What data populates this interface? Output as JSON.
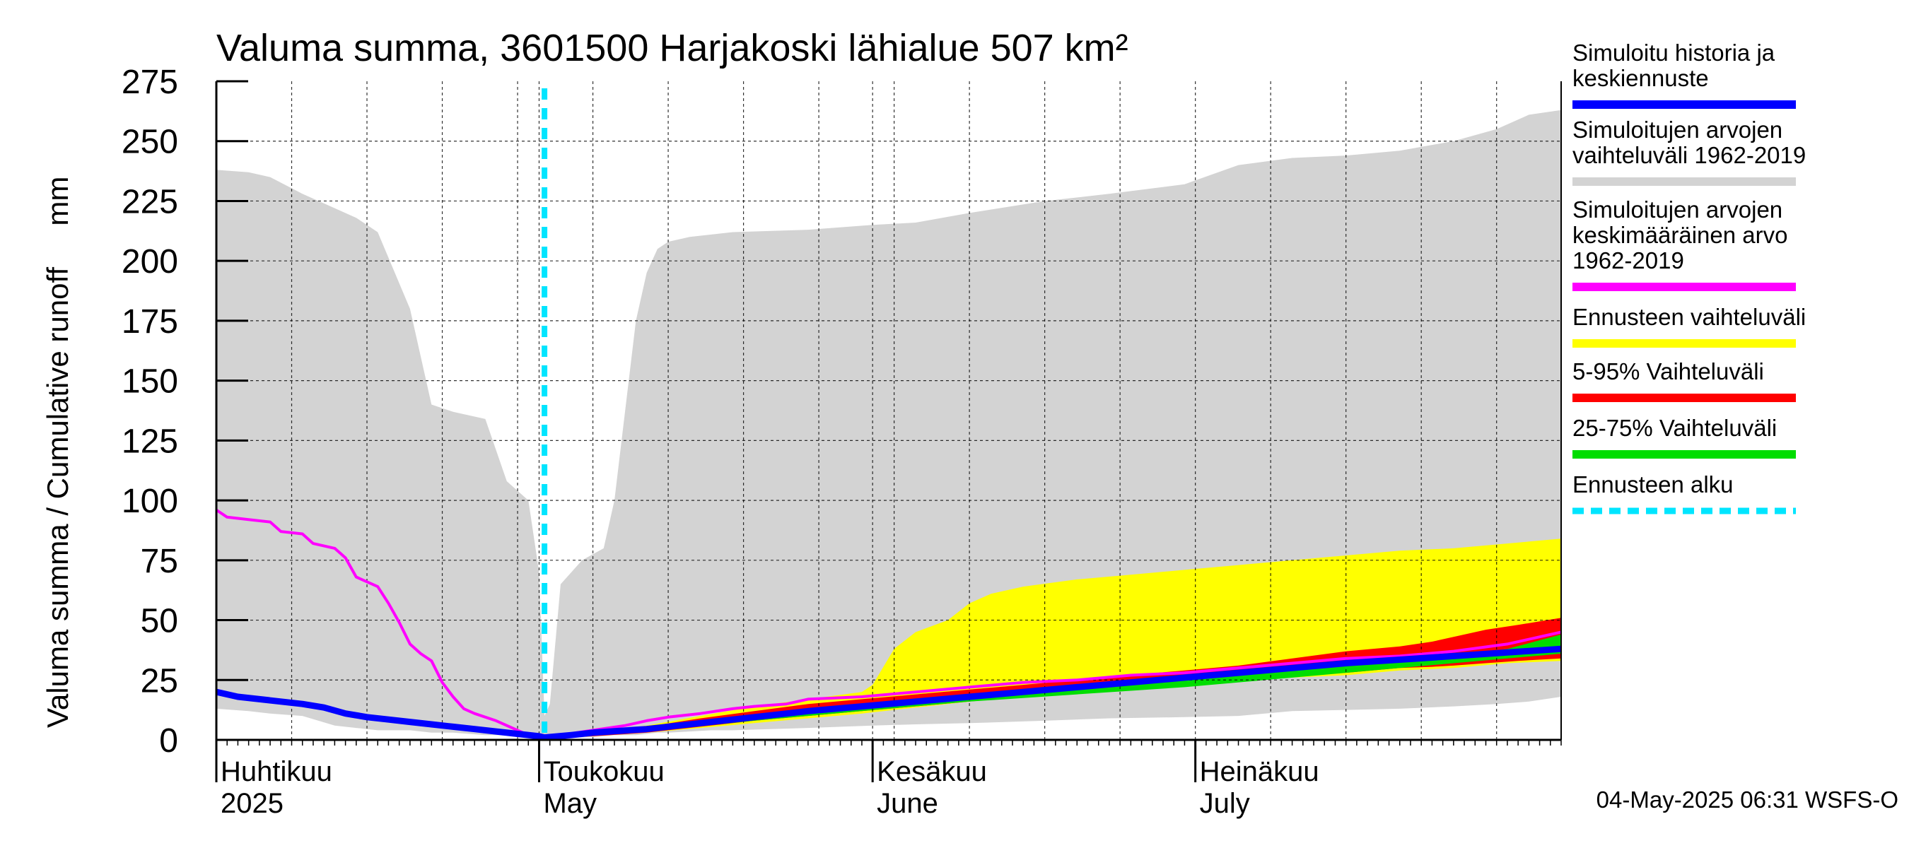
{
  "chart_data": {
    "type": "area",
    "title": "Valuma summa, 3601500 Harjakoski lähialue 507 km²",
    "ylabel": "Valuma summa / Cumulative runoff     mm",
    "ylim": [
      0,
      275
    ],
    "yticks": [
      "0",
      "25",
      "50",
      "75",
      "100",
      "125",
      "150",
      "175",
      "200",
      "225",
      "250",
      "275"
    ],
    "xlim_day": [
      0,
      125
    ],
    "x_axis_note": "day index, 0 = 1 April 2025",
    "grid": true,
    "months": [
      {
        "label1": "Huhtikuu",
        "label2": "2025",
        "day": 0
      },
      {
        "label1": "Toukokuu",
        "label2": "May",
        "day": 30
      },
      {
        "label1": "Kesäkuu",
        "label2": "June",
        "day": 61
      },
      {
        "label1": "Heinäkuu",
        "label2": "July",
        "day": 91
      }
    ],
    "forecast_start_day": 30.5,
    "series": [
      {
        "name": "Simuloitujen arvojen vaihteluväli 1962-2019",
        "kind": "band",
        "color": "#d3d3d3",
        "x": [
          0,
          3,
          5,
          8,
          11,
          13,
          15,
          18,
          20,
          22,
          25,
          27,
          29,
          30,
          30.5,
          31,
          32,
          34,
          36,
          37,
          39,
          40,
          41,
          42,
          44,
          46,
          48,
          55,
          61,
          65,
          70,
          77,
          83,
          90,
          95,
          100,
          105,
          110,
          115,
          119,
          122,
          125
        ],
        "upper": [
          238,
          237,
          235,
          228,
          222,
          218,
          212,
          180,
          140,
          137,
          134,
          108,
          100,
          70,
          10,
          15,
          65,
          75,
          80,
          100,
          175,
          195,
          205,
          208,
          210,
          211,
          212,
          213,
          215,
          216,
          220,
          225,
          228,
          232,
          240,
          243,
          244,
          246,
          250,
          255,
          261,
          263
        ],
        "lower": [
          13,
          12,
          11,
          10,
          6,
          5,
          4,
          4,
          3,
          3,
          2,
          2,
          1.5,
          1,
          0.5,
          0.5,
          1,
          1,
          1.5,
          2,
          2,
          2.5,
          3,
          3,
          3.5,
          4,
          4,
          5,
          6,
          6.5,
          7,
          8,
          9,
          9.5,
          10,
          12,
          12.5,
          13,
          14,
          15,
          16,
          18
        ]
      },
      {
        "name": "Ennusteen vaihteluväli",
        "kind": "band",
        "color": "#ffff00",
        "x": [
          30.5,
          35,
          40,
          45,
          50,
          55,
          60,
          61,
          63,
          65,
          68,
          70,
          72,
          75,
          80,
          85,
          90,
          95,
          100,
          105,
          110,
          115,
          120,
          125
        ],
        "upper": [
          0.5,
          3,
          6,
          10,
          14,
          17,
          20,
          23,
          38,
          45,
          50,
          57,
          61,
          64,
          67,
          69,
          71,
          73,
          75,
          77,
          79,
          80,
          82,
          84
        ],
        "lower": [
          0.5,
          1.5,
          3,
          5,
          7,
          9,
          11,
          11.5,
          12.5,
          13.5,
          15,
          16,
          17,
          18,
          20,
          22,
          24,
          25,
          26,
          27,
          29,
          30,
          32,
          33
        ]
      },
      {
        "name": "5-95% Vaihteluväli",
        "kind": "band",
        "color": "#ff0000",
        "x": [
          30.5,
          35,
          40,
          45,
          50,
          55,
          60,
          65,
          70,
          75,
          80,
          85,
          90,
          95,
          100,
          105,
          110,
          113,
          115,
          118,
          121,
          125
        ],
        "upper": [
          0.5,
          3,
          5.5,
          9,
          12,
          15,
          17,
          19,
          21,
          23,
          25,
          27,
          29,
          31,
          34,
          37,
          39,
          41,
          43,
          46,
          48,
          51
        ],
        "lower": [
          0.5,
          1.5,
          3,
          5.5,
          8,
          10,
          12,
          14,
          16,
          18,
          20,
          22,
          24,
          25,
          27,
          28,
          30,
          30.5,
          31,
          32,
          33,
          34
        ]
      },
      {
        "name": "25-75% Vaihteluväli",
        "kind": "band",
        "color": "#00dd00",
        "x": [
          30.5,
          40,
          50,
          60,
          70,
          80,
          90,
          100,
          105,
          110,
          115,
          120,
          125
        ],
        "upper": [
          0.5,
          4.5,
          9.5,
          14.5,
          18.5,
          22,
          25.5,
          29,
          31,
          33,
          35,
          38,
          44
        ],
        "lower": [
          0.5,
          3.5,
          8,
          12,
          16,
          19,
          22,
          26,
          28,
          30,
          32,
          34,
          36
        ]
      },
      {
        "name": "Simuloitujen arvojen keskimääräinen arvo 1962-2019",
        "kind": "line",
        "color": "#ff00ff",
        "x": [
          0,
          1,
          3,
          5,
          6,
          8,
          9,
          11,
          12,
          13,
          15,
          16,
          17,
          18,
          19,
          20,
          21,
          22,
          23,
          24,
          26,
          28,
          29,
          30,
          30.5,
          32,
          35,
          38,
          40,
          42,
          45,
          48,
          50,
          53,
          55,
          60,
          65,
          70,
          75,
          80,
          85,
          90,
          95,
          100,
          105,
          110,
          115,
          120,
          125
        ],
        "values": [
          96,
          93,
          92,
          91,
          87,
          86,
          82,
          80,
          76,
          68,
          64,
          57,
          49,
          40,
          36,
          33,
          24,
          18,
          13,
          11,
          8,
          4,
          2,
          1.5,
          1,
          2,
          4,
          6,
          8,
          9.5,
          11,
          13,
          14,
          15,
          17,
          18,
          20,
          22,
          24,
          25,
          27,
          28,
          30,
          32,
          34,
          35,
          37,
          40,
          45
        ]
      },
      {
        "name": "Simuloitu historia ja keskiennuste",
        "kind": "line",
        "color": "#0000ff",
        "x": [
          0,
          2,
          4,
          6,
          8,
          10,
          12,
          14,
          16,
          18,
          20,
          22,
          24,
          26,
          28,
          30,
          30.5,
          33,
          35,
          40,
          45,
          50,
          55,
          60,
          65,
          70,
          75,
          80,
          85,
          90,
          95,
          100,
          105,
          110,
          115,
          120,
          125
        ],
        "values": [
          20,
          18,
          17,
          16,
          15,
          13.5,
          11,
          9.5,
          8.5,
          7.5,
          6.5,
          5.5,
          4.5,
          3.5,
          2.5,
          1.5,
          1,
          2,
          3,
          4.5,
          7,
          9.5,
          12,
          14,
          16,
          18,
          20,
          22,
          24,
          26,
          28,
          30,
          32,
          33.5,
          35,
          36.5,
          38
        ]
      }
    ]
  },
  "legend": [
    {
      "lines": [
        "Simuloitu historia ja",
        "keskiennuste"
      ],
      "color": "#0000ff",
      "style": "solid"
    },
    {
      "lines": [
        "Simuloitujen arvojen",
        "vaihteluväli 1962-2019"
      ],
      "color": "#d3d3d3",
      "style": "solid"
    },
    {
      "lines": [
        "Simuloitujen arvojen",
        "keskimääräinen arvo",
        "   1962-2019"
      ],
      "color": "#ff00ff",
      "style": "solid"
    },
    {
      "lines": [
        "Ennusteen vaihteluväli"
      ],
      "color": "#ffff00",
      "style": "solid"
    },
    {
      "lines": [
        "5-95% Vaihteluväli"
      ],
      "color": "#ff0000",
      "style": "solid"
    },
    {
      "lines": [
        "25-75% Vaihteluväli"
      ],
      "color": "#00dd00",
      "style": "solid"
    },
    {
      "lines": [
        "Ennusteen alku"
      ],
      "color": "#00e5ff",
      "style": "dashed"
    }
  ],
  "footer": "04-May-2025 06:31 WSFS-O"
}
